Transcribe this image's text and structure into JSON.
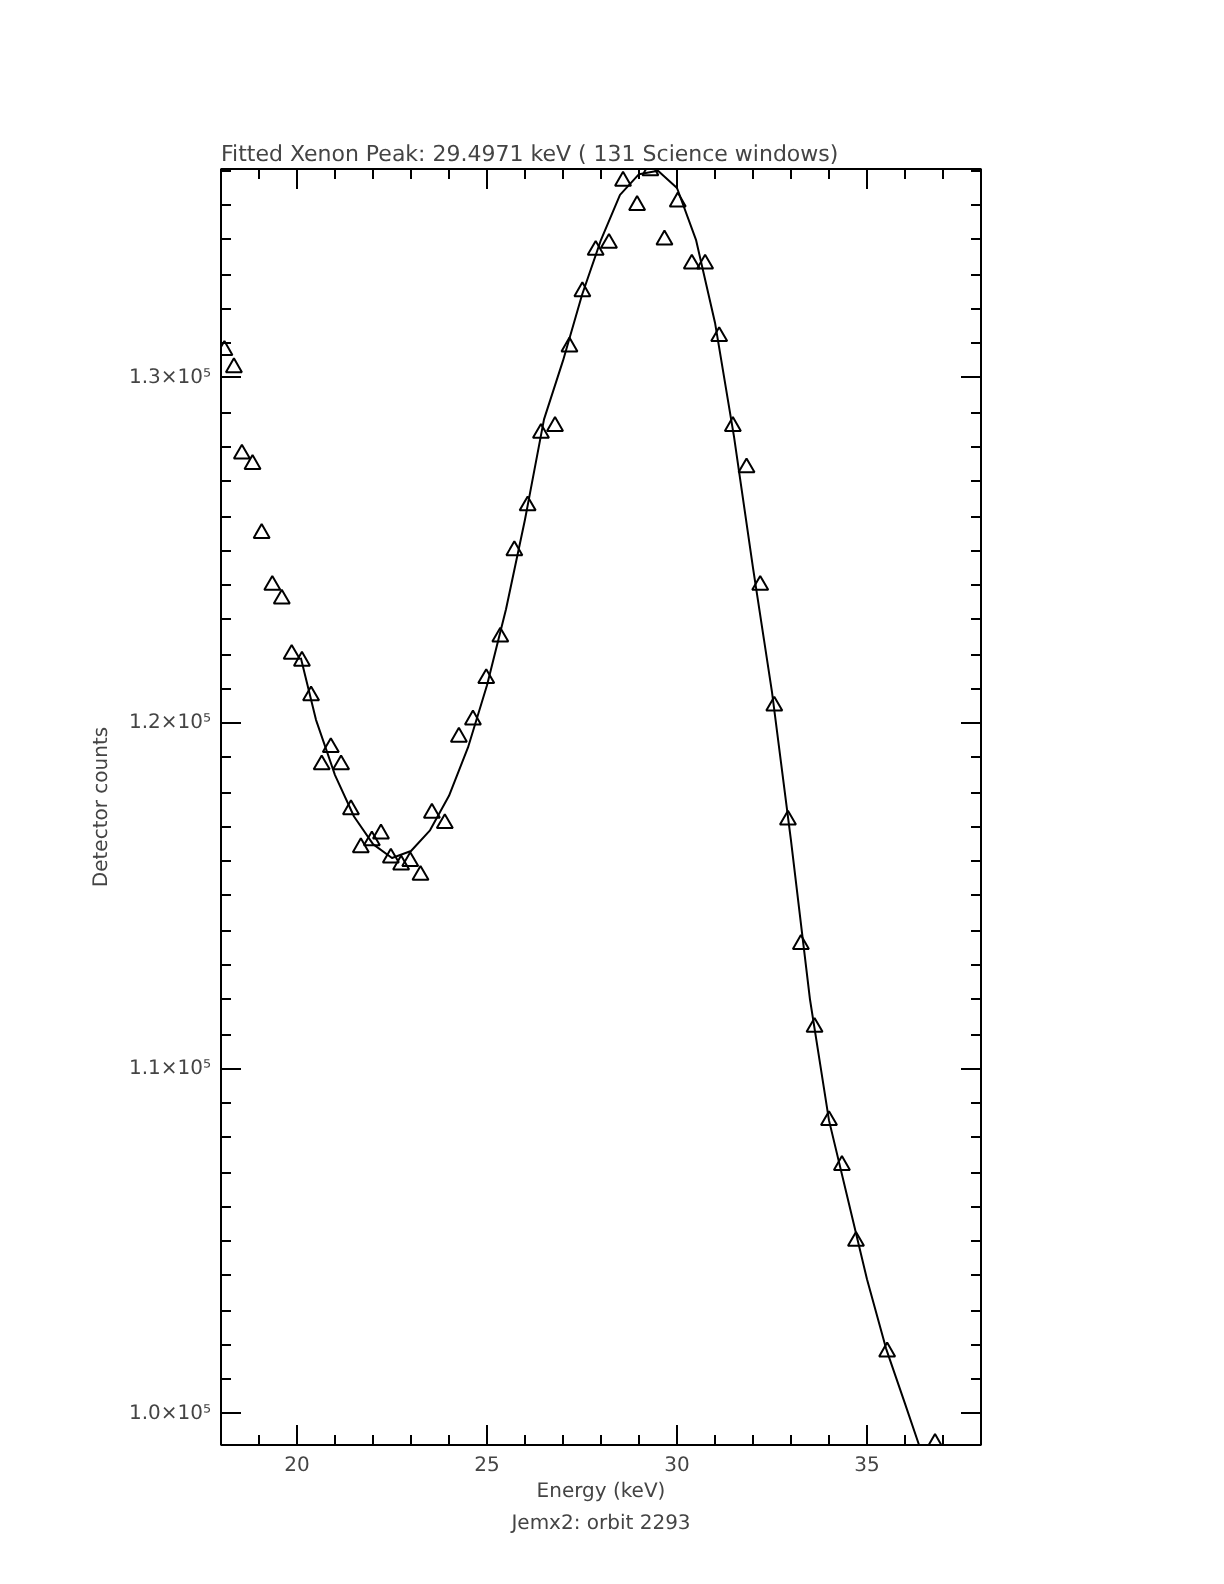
{
  "chart_data": {
    "type": "scatter",
    "title": "Fitted Xenon Peak:      29.4971 keV (        131 Science windows)",
    "xlabel": "Energy (keV)",
    "ylabel": "Detector counts",
    "annotations": [
      "Jemx2: orbit 2293"
    ],
    "xlim": [
      18,
      38
    ],
    "xticks": [
      20,
      25,
      30,
      35
    ],
    "ylim": [
      99100,
      136050
    ],
    "yticks": [
      {
        "value": 100000,
        "label": "1.0×10⁵"
      },
      {
        "value": 110000,
        "label": "1.1×10⁵"
      },
      {
        "value": 120000,
        "label": "1.2×10⁵"
      },
      {
        "value": 130000,
        "label": "1.3×10⁵"
      }
    ],
    "grid": false,
    "series": [
      {
        "marker": "triangle",
        "color": "#000000",
        "x": [
          18.09,
          18.34,
          18.55,
          18.83,
          19.07,
          19.35,
          19.6,
          19.86,
          20.13,
          20.37,
          20.65,
          20.89,
          21.16,
          21.42,
          21.68,
          21.97,
          22.21,
          22.47,
          22.74,
          22.98,
          23.25,
          23.55,
          23.89,
          24.26,
          24.63,
          24.98,
          25.35,
          25.72,
          26.07,
          26.42,
          26.79,
          27.17,
          27.51,
          27.86,
          28.21,
          28.58,
          28.95,
          29.3,
          29.67,
          30.02,
          30.39,
          30.74,
          31.11,
          31.47,
          31.83,
          32.19,
          32.56,
          32.92,
          33.26,
          33.62,
          34.0,
          34.34,
          34.71,
          35.53,
          36.79
        ],
        "values": [
          130800,
          130300,
          127800,
          127500,
          125500,
          124000,
          123600,
          122000,
          121800,
          120800,
          118800,
          119300,
          118800,
          117500,
          116400,
          116600,
          116800,
          116100,
          115900,
          116000,
          115600,
          117400,
          117100,
          119600,
          120100,
          121300,
          122500,
          125000,
          126300,
          128400,
          128600,
          130900,
          132500,
          133700,
          133900,
          135700,
          135000,
          136000,
          134000,
          135100,
          133300,
          133300,
          131200,
          128600,
          127400,
          124000,
          120500,
          117200,
          113600,
          111200,
          108500,
          107200,
          105000,
          101800,
          99150
        ]
      },
      {
        "type": "line",
        "marker": "none",
        "line_style": "solid",
        "color": "#000000",
        "x": [
          20.1,
          20.5,
          21.0,
          21.5,
          22.0,
          22.5,
          23.0,
          23.5,
          24.0,
          24.5,
          25.0,
          25.5,
          26.0,
          26.5,
          27.0,
          27.5,
          28.0,
          28.5,
          29.0,
          29.5,
          30.0,
          30.5,
          31.0,
          31.5,
          32.0,
          32.5,
          33.0,
          33.5,
          34.0,
          34.5,
          35.0,
          35.5,
          36.0,
          36.37
        ],
        "values": [
          121900,
          120100,
          118500,
          117300,
          116500,
          116100,
          116300,
          116900,
          117900,
          119300,
          121100,
          123300,
          125900,
          128800,
          130500,
          132400,
          134000,
          135300,
          135900,
          136000,
          135500,
          134000,
          131600,
          128300,
          124500,
          120900,
          116600,
          112000,
          108500,
          106200,
          103900,
          101900,
          100300,
          99100
        ]
      }
    ]
  }
}
